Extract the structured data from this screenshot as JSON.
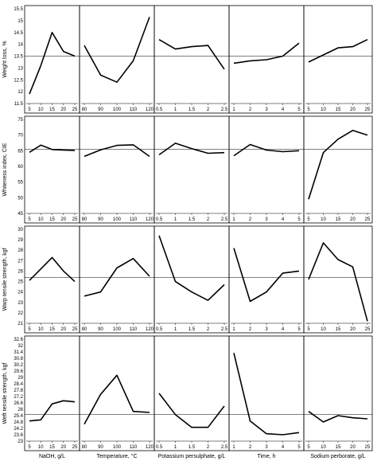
{
  "chart_data": {
    "type": "line",
    "columns": [
      {
        "xlabel": "NaOH, g/L",
        "x": [
          5,
          10,
          15,
          20,
          25
        ]
      },
      {
        "xlabel": "Temperature, °C",
        "x": [
          80,
          90,
          100,
          110,
          120
        ]
      },
      {
        "xlabel": "Potassium persulphate, g/L",
        "x": [
          0.5,
          1,
          1.5,
          2,
          2.5
        ]
      },
      {
        "xlabel": "Time, h",
        "x": [
          1,
          2,
          3,
          4,
          5
        ]
      },
      {
        "xlabel": "Sodium perborate, g/L",
        "x": [
          5,
          10,
          15,
          20,
          25
        ]
      }
    ],
    "rows": [
      {
        "ylabel": "Weight loss, %",
        "ylim": [
          11.5,
          15.5
        ],
        "yticks": [
          11.5,
          12,
          12.5,
          13,
          13.5,
          14,
          14.5,
          15,
          15.5
        ],
        "ytick_labels": [
          "11.5",
          "12",
          "12.5",
          "13",
          "13.5",
          "14",
          "14.5",
          "15",
          "15.5"
        ],
        "reference": 13.5,
        "series": [
          [
            11.9,
            13.1,
            14.5,
            13.7,
            13.5
          ],
          [
            13.95,
            12.7,
            12.4,
            13.3,
            15.15
          ],
          [
            14.2,
            13.8,
            13.9,
            13.95,
            12.95
          ],
          [
            13.2,
            13.3,
            13.35,
            13.5,
            14.05
          ],
          [
            13.25,
            13.55,
            13.85,
            13.9,
            14.2
          ]
        ]
      },
      {
        "ylabel": "Whiteness index, CIE",
        "ylim": [
          45,
          75
        ],
        "yticks": [
          45,
          50,
          55,
          60,
          65,
          70,
          75
        ],
        "ytick_labels": [
          "45",
          "50",
          "55",
          "60",
          "65",
          "70",
          "75"
        ],
        "reference": 65.5,
        "series": [
          [
            64.5,
            66.8,
            65.4,
            65.2,
            65.1
          ],
          [
            63.2,
            65.3,
            66.7,
            66.9,
            63.2
          ],
          [
            63.7,
            67.4,
            65.7,
            64.2,
            64.4
          ],
          [
            63.4,
            67.0,
            65.2,
            64.7,
            65.0
          ],
          [
            49.5,
            64.4,
            68.7,
            71.5,
            70.0
          ]
        ]
      },
      {
        "ylabel": "Warp tensile strength, kgf",
        "ylim": [
          21,
          30
        ],
        "yticks": [
          21,
          22,
          23,
          24,
          25,
          26,
          27,
          28,
          29,
          30
        ],
        "ytick_labels": [
          "21",
          "22",
          "23",
          "24",
          "25",
          "26",
          "27",
          "28",
          "29",
          "30"
        ],
        "reference": 25.4,
        "series": [
          [
            25.1,
            26.2,
            27.3,
            26.0,
            25.0
          ],
          [
            23.6,
            24.0,
            26.3,
            27.2,
            25.5
          ],
          [
            29.4,
            25.0,
            24.0,
            23.2,
            24.7
          ],
          [
            28.2,
            23.1,
            24.0,
            25.8,
            26.0
          ],
          [
            25.2,
            28.7,
            27.1,
            26.4,
            21.2
          ]
        ]
      },
      {
        "ylabel": "Weft tensile strength, kgf",
        "ylim": [
          23,
          32.6
        ],
        "yticks": [
          23,
          23.6,
          24.2,
          24.8,
          25.4,
          26,
          26.6,
          27.2,
          27.8,
          28.4,
          29,
          29.6,
          30.2,
          30.8,
          31.4,
          32,
          32.6
        ],
        "ytick_labels": [
          "23",
          "23.6",
          "24.2",
          "24.8",
          "25.4",
          "26",
          "26.6",
          "27.2",
          "27.8",
          "28.4",
          "29",
          "29.6",
          "30.2",
          "30.8",
          "31.4",
          "32",
          "32.6"
        ],
        "reference": 25.5,
        "series": [
          [
            24.9,
            25.0,
            26.5,
            26.8,
            26.7
          ],
          [
            24.6,
            27.4,
            29.2,
            25.8,
            25.7
          ],
          [
            27.5,
            25.5,
            24.3,
            24.3,
            26.3
          ],
          [
            31.3,
            24.9,
            23.7,
            23.6,
            23.8
          ],
          [
            25.8,
            24.8,
            25.4,
            25.2,
            25.1
          ]
        ]
      }
    ]
  }
}
